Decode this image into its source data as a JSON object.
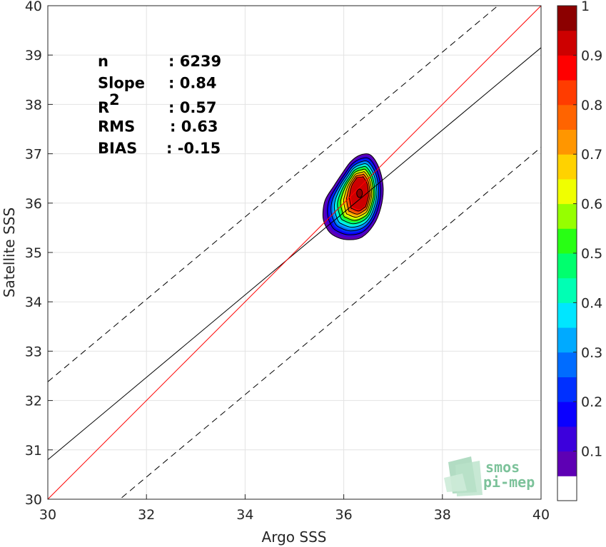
{
  "chart_data": {
    "type": "heatmap",
    "xlabel": "Argo SSS",
    "ylabel": "Satellite SSS",
    "xlim": [
      30,
      40
    ],
    "ylim": [
      30,
      40
    ],
    "xticks": [
      "30",
      "32",
      "34",
      "36",
      "38",
      "40"
    ],
    "yticks": [
      "30",
      "31",
      "32",
      "33",
      "34",
      "35",
      "36",
      "37",
      "38",
      "39",
      "40"
    ],
    "grid": true,
    "stats": [
      {
        "label": "n",
        "sup": "",
        "value": ": 6239"
      },
      {
        "label": "Slope",
        "sup": "",
        "value": ": 0.84"
      },
      {
        "label": "R",
        "sup": "2",
        "value": ": 0.57"
      },
      {
        "label": "RMS",
        "sup": "",
        "value": ": 0.63"
      },
      {
        "label": "BIAS",
        "sup": "",
        "value": ": -0.15"
      }
    ],
    "lines": {
      "identity": {
        "x": [
          30,
          40
        ],
        "y": [
          30,
          40
        ],
        "color": "#ff0000"
      },
      "regression": {
        "x": [
          30,
          40
        ],
        "y": [
          30.8,
          39.15
        ],
        "color": "#000000"
      },
      "upper_bound": {
        "x": [
          30,
          40
        ],
        "y": [
          32.38,
          40.73
        ],
        "color": "#000000",
        "dashed": true
      },
      "lower_bound": {
        "x": [
          30,
          40
        ],
        "y": [
          28.78,
          37.13
        ],
        "color": "#000000",
        "dashed": true
      }
    },
    "density": {
      "center": [
        36.32,
        36.2
      ],
      "levels": [
        0.05,
        0.1,
        0.2,
        0.3,
        0.4,
        0.5,
        0.6,
        0.7,
        0.8,
        0.9
      ],
      "max": 1
    },
    "colorbar": {
      "ticks": [
        "0.1",
        "0.2",
        "0.3",
        "0.4",
        "0.5",
        "0.6",
        "0.7",
        "0.8",
        "0.9",
        "1"
      ],
      "colors": [
        "#ffffff",
        "#5e00b4",
        "#3c00dc",
        "#0a00ff",
        "#0030ff",
        "#006cff",
        "#00aaff",
        "#00e6ff",
        "#00ffb4",
        "#00ff6e",
        "#28ff14",
        "#96ff00",
        "#f0ff00",
        "#ffd200",
        "#ff9600",
        "#ff6400",
        "#ff3c00",
        "#ff0000",
        "#cd0000",
        "#8c0000"
      ]
    }
  },
  "logo": {
    "line1": "smos",
    "line2": "pi-mep"
  }
}
